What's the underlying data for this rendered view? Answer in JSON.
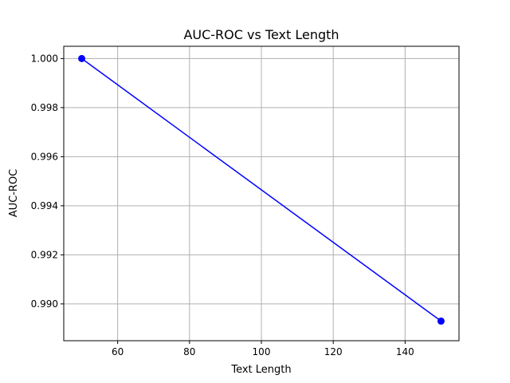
{
  "chart_data": {
    "type": "line",
    "title": "AUC-ROC vs Text Length",
    "xlabel": "Text Length",
    "ylabel": "AUC-ROC",
    "xlim": [
      45,
      155
    ],
    "ylim": [
      0.9885,
      1.0005
    ],
    "xticks": [
      60,
      80,
      100,
      120,
      140
    ],
    "yticks": [
      0.99,
      0.992,
      0.994,
      0.996,
      0.998,
      1.0
    ],
    "xtick_labels": [
      "60",
      "80",
      "100",
      "120",
      "140"
    ],
    "ytick_labels": [
      "0.990",
      "0.992",
      "0.994",
      "0.996",
      "0.998",
      "1.000"
    ],
    "grid": true,
    "series": [
      {
        "color": "#0000ff",
        "marker": "circle",
        "x": [
          50,
          150
        ],
        "y": [
          1.0,
          0.9893
        ]
      }
    ]
  }
}
